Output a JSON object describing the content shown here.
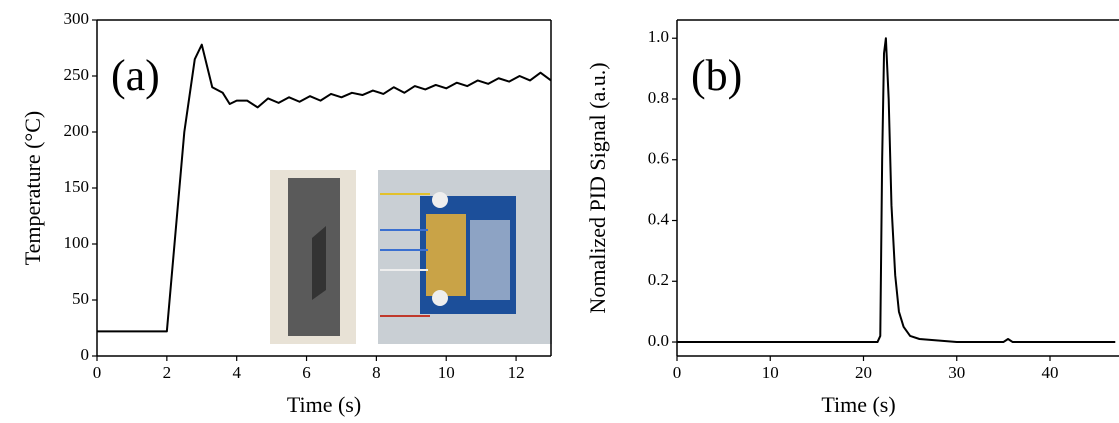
{
  "chart_data": [
    {
      "type": "line",
      "annotation": "(a)",
      "xlabel": "Time (s)",
      "ylabel": "Temperature (°C)",
      "color": "#000000",
      "x": [
        0,
        2,
        2.5,
        2.8,
        3.0,
        3.3,
        3.6,
        3.8,
        4.0,
        4.3,
        4.6,
        4.9,
        5.2,
        5.5,
        5.8,
        6.1,
        6.4,
        6.7,
        7.0,
        7.3,
        7.6,
        7.9,
        8.2,
        8.5,
        8.8,
        9.1,
        9.4,
        9.7,
        10.0,
        10.3,
        10.6,
        10.9,
        11.2,
        11.5,
        11.8,
        12.1,
        12.4,
        12.7,
        13.0
      ],
      "values": [
        22,
        22,
        200,
        265,
        278,
        240,
        235,
        225,
        228,
        228,
        222,
        230,
        226,
        231,
        227,
        232,
        228,
        234,
        231,
        235,
        233,
        237,
        234,
        240,
        235,
        241,
        238,
        242,
        239,
        244,
        241,
        246,
        243,
        248,
        245,
        250,
        246,
        253,
        246
      ],
      "xlim": [
        0,
        13
      ],
      "ylim": [
        0,
        300
      ],
      "xticks": [
        0,
        2,
        4,
        6,
        8,
        10,
        12
      ],
      "yticks": [
        0,
        50,
        100,
        150,
        200,
        250,
        300
      ]
    },
    {
      "type": "line",
      "annotation": "(b)",
      "xlabel": "Time (s)",
      "ylabel": "Nomalized PID Signal (a.u.)",
      "color": "#000000",
      "x": [
        0,
        21.5,
        21.8,
        22.0,
        22.2,
        22.4,
        22.7,
        23.0,
        23.4,
        23.8,
        24.3,
        25,
        26,
        28,
        30,
        35,
        35.5,
        36,
        40,
        47
      ],
      "values": [
        0,
        0,
        0.02,
        0.6,
        0.95,
        1.0,
        0.8,
        0.45,
        0.22,
        0.1,
        0.05,
        0.02,
        0.01,
        0.005,
        0,
        0,
        0.01,
        0,
        0,
        0
      ],
      "xlim": [
        0,
        47.4
      ],
      "ylim": [
        -0.046,
        1.06
      ],
      "xticks": [
        0,
        10,
        20,
        30,
        40
      ],
      "yticks": [
        {
          "value": 0,
          "label": "0.0"
        },
        0.2,
        0.4,
        0.6,
        0.8,
        {
          "value": 1,
          "label": "1.0"
        }
      ]
    }
  ]
}
